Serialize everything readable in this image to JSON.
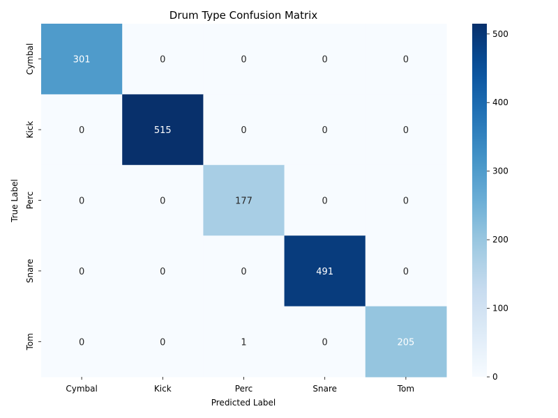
{
  "chart_data": {
    "type": "heatmap",
    "title": "Drum Type Confusion Matrix",
    "xlabel": "Predicted Label",
    "ylabel": "True Label",
    "x_categories": [
      "Cymbal",
      "Kick",
      "Perc",
      "Snare",
      "Tom"
    ],
    "y_categories": [
      "Cymbal",
      "Kick",
      "Perc",
      "Snare",
      "Tom"
    ],
    "values": [
      [
        301,
        0,
        0,
        0,
        0
      ],
      [
        0,
        515,
        0,
        0,
        0
      ],
      [
        0,
        0,
        177,
        0,
        0
      ],
      [
        0,
        0,
        0,
        491,
        0
      ],
      [
        0,
        0,
        1,
        0,
        205
      ]
    ],
    "colormap": "Blues",
    "vmin": 0,
    "vmax": 515,
    "colorbar_ticks": [
      0,
      100,
      200,
      300,
      400,
      500
    ]
  }
}
